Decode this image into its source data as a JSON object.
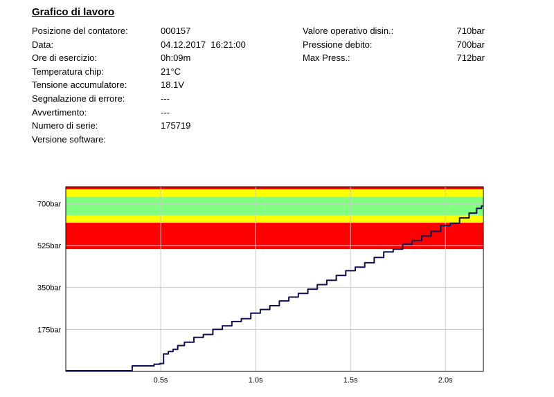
{
  "header": {
    "title": "Grafico di lavoro",
    "left_fields": [
      {
        "label": "Posizione del contatore:",
        "value": "000157"
      },
      {
        "label": "Data:",
        "value": "04.12.2017  16:21:00"
      },
      {
        "label": "Ore di esercizio:",
        "value": "0h:09m"
      },
      {
        "label": "Temperatura chip:",
        "value": "21°C"
      },
      {
        "label": "Tensione accumulatore:",
        "value": "18.1V"
      },
      {
        "label": "Segnalazione di errore:",
        "value": "---"
      },
      {
        "label": "Avvertimento:",
        "value": "---"
      },
      {
        "label": "Numero di serie:",
        "value": "175719"
      },
      {
        "label": "Versione software:",
        "value": ""
      }
    ],
    "right_fields": [
      {
        "label": "Valore operativo disin.:",
        "value": "710bar"
      },
      {
        "label": "Pressione debito:",
        "value": "700bar"
      },
      {
        "label": "Max Press.:",
        "value": "712bar"
      }
    ]
  },
  "chart_data": {
    "type": "line",
    "title": "",
    "xlabel": "",
    "ylabel": "",
    "xlim": [
      0,
      2.2
    ],
    "ylim": [
      0,
      770
    ],
    "x_ticks": [
      0.5,
      1.0,
      1.5,
      2.0
    ],
    "x_tick_labels": [
      "0.5s",
      "1.0s",
      "1.5s",
      "2.0s"
    ],
    "y_ticks": [
      175,
      350,
      525,
      700
    ],
    "y_tick_labels": [
      "175bar",
      "350bar",
      "525bar",
      "700bar"
    ],
    "grid": true,
    "bands": [
      {
        "from": 510,
        "to": 620,
        "color": "#ff0000"
      },
      {
        "from": 620,
        "to": 652,
        "color": "#ffff00"
      },
      {
        "from": 652,
        "to": 728,
        "color": "#80ff80"
      },
      {
        "from": 728,
        "to": 760,
        "color": "#ffff00"
      },
      {
        "from": 760,
        "to": 770,
        "color": "#ff0000"
      }
    ],
    "series": [
      {
        "color": "#0f0f50",
        "x": [
          0,
          0.34,
          0.36,
          0.44,
          0.49,
          0.5,
          0.53,
          0.55,
          0.58,
          0.6,
          0.65,
          0.7,
          0.75,
          0.8,
          0.85,
          0.9,
          0.95,
          1.0,
          1.05,
          1.1,
          1.15,
          1.2,
          1.25,
          1.3,
          1.35,
          1.4,
          1.45,
          1.5,
          1.55,
          1.6,
          1.65,
          1.7,
          1.75,
          1.8,
          1.85,
          1.9,
          1.95,
          2.0,
          2.05,
          2.1,
          2.15,
          2.18,
          2.2
        ],
        "y": [
          3,
          3,
          23,
          23,
          30,
          33,
          73,
          83,
          92,
          108,
          122,
          142,
          154,
          175,
          190,
          208,
          220,
          243,
          258,
          274,
          294,
          310,
          325,
          343,
          362,
          380,
          400,
          420,
          435,
          453,
          475,
          498,
          510,
          530,
          546,
          564,
          584,
          608,
          618,
          640,
          660,
          680,
          690
        ]
      }
    ]
  }
}
